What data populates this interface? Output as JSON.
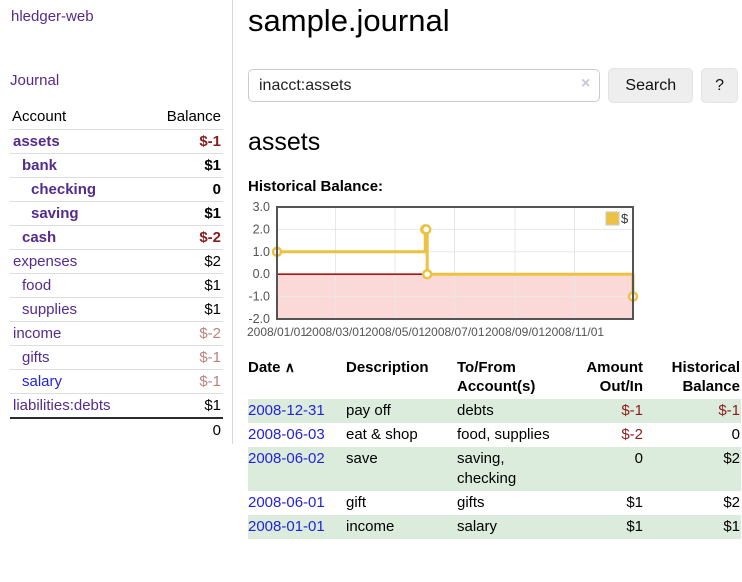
{
  "app": {
    "title": "hledger-web"
  },
  "theme": {
    "link_purple": "#552b8c",
    "link_blue": "#2323d8",
    "negative": "#8b1c1c",
    "negative_faded": "#bd8080",
    "row_green": "#dcecdc"
  },
  "sidebar": {
    "journal_label": "Journal",
    "accounts": {
      "header_account": "Account",
      "header_balance": "Balance",
      "rows": [
        {
          "account": "assets",
          "indent": 0,
          "bold": true,
          "balance": "$-1",
          "bstyle": "neg"
        },
        {
          "account": "bank",
          "indent": 1,
          "bold": true,
          "balance": "$1",
          "bstyle": "num"
        },
        {
          "account": "checking",
          "indent": 2,
          "bold": true,
          "balance": "0",
          "bstyle": "num"
        },
        {
          "account": "saving",
          "indent": 2,
          "bold": true,
          "balance": "$1",
          "bstyle": "num"
        },
        {
          "account": "cash",
          "indent": 1,
          "bold": true,
          "balance": "$-2",
          "bstyle": "neg"
        },
        {
          "account": "expenses",
          "indent": 0,
          "bold": false,
          "balance": "$2",
          "bstyle": "num"
        },
        {
          "account": "food",
          "indent": 1,
          "bold": false,
          "balance": "$1",
          "bstyle": "num"
        },
        {
          "account": "supplies",
          "indent": 1,
          "bold": false,
          "balance": "$1",
          "bstyle": "num"
        },
        {
          "account": "income",
          "indent": 0,
          "bold": false,
          "balance": "$-2",
          "bstyle": "negfaded"
        },
        {
          "account": "gifts",
          "indent": 1,
          "bold": false,
          "balance": "$-1",
          "bstyle": "negfaded"
        },
        {
          "account": "salary",
          "indent": 1,
          "bold": false,
          "unvisited": true,
          "balance": "$-1",
          "bstyle": "negfaded"
        },
        {
          "account": "liabilities:debts",
          "indent": 0,
          "bold": false,
          "balance": "$1",
          "bstyle": "num"
        }
      ],
      "total": "0"
    }
  },
  "main": {
    "title": "sample.journal",
    "search": {
      "value": "inacct:assets",
      "clear_icon": "×",
      "button_label": "Search",
      "help_label": "?"
    },
    "account_heading": "assets",
    "chart_title": "Historical Balance:"
  },
  "chart_data": {
    "type": "line",
    "style": "step",
    "title": "Historical Balance",
    "series": [
      {
        "name": "$",
        "color": "#EDC240",
        "points": [
          [
            "2008-01-01",
            1
          ],
          [
            "2008-06-01",
            2
          ],
          [
            "2008-06-02",
            2
          ],
          [
            "2008-06-03",
            0
          ],
          [
            "2008-12-31",
            -1
          ]
        ]
      }
    ],
    "x_range": [
      "2008-01-01",
      "2008-12-31"
    ],
    "ylim": [
      -2,
      3
    ],
    "y_ticks": [
      "3.0",
      "2.0",
      "1.0",
      "0.0",
      "-1.0",
      "-2.0"
    ],
    "x_ticks": [
      "2008/01/01",
      "2008/03/01",
      "2008/05/01",
      "2008/07/01",
      "2008/09/01",
      "2008/11/01"
    ],
    "legend_position": "top-right",
    "grid": true,
    "negative_fill": "#fbd9d9",
    "zero_line_color": "#a81414",
    "grid_color": "#e7e7e7",
    "border_color": "#545454",
    "tick_label_color": "#545454"
  },
  "register": {
    "headers": {
      "date": "Date",
      "sort_icon": "∧",
      "description": "Description",
      "accounts": "To/From Account(s)",
      "amount": "Amount Out/In",
      "balance": "Historical Balance"
    },
    "rows": [
      {
        "date": "2008-12-31",
        "description": "pay off",
        "accounts": "debts",
        "amount": "$-1",
        "balance": "$-1"
      },
      {
        "date": "2008-06-03",
        "description": "eat & shop",
        "accounts": "food, supplies",
        "amount": "$-2",
        "balance": "0"
      },
      {
        "date": "2008-06-02",
        "description": "save",
        "accounts": "saving, checking",
        "amount": "0",
        "balance": "$2"
      },
      {
        "date": "2008-06-01",
        "description": "gift",
        "accounts": "gifts",
        "amount": "$1",
        "balance": "$2"
      },
      {
        "date": "2008-01-01",
        "description": "income",
        "accounts": "salary",
        "amount": "$1",
        "balance": "$1"
      }
    ]
  }
}
